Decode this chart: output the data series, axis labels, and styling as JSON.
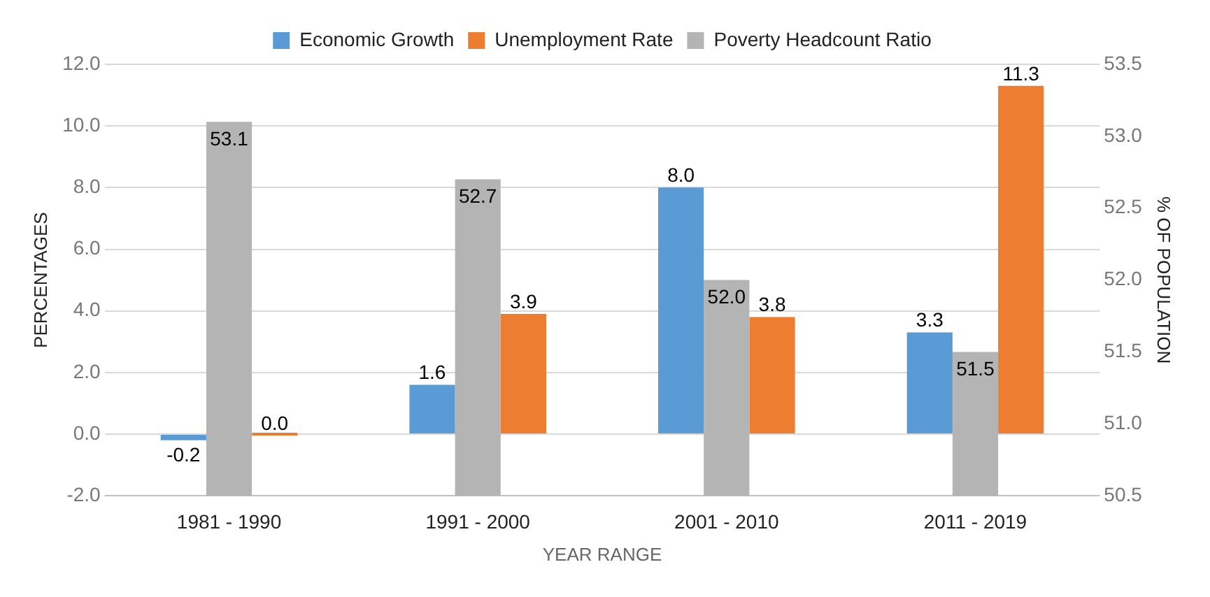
{
  "chart_data": {
    "type": "bar",
    "categories": [
      "1981 - 1990",
      "1991 - 2000",
      "2001 - 2010",
      "2011 - 2019"
    ],
    "xlabel": "YEAR RANGE",
    "ylabel": "PERCENTAGES",
    "y2label": "% OF POPULATION",
    "series": [
      {
        "name": "Economic Growth",
        "color": "#5b9bd5",
        "values": [
          -0.2,
          1.6,
          8.0,
          3.3
        ],
        "value_labels": [
          "-0.2",
          "1.6",
          "8.0",
          "3.3"
        ]
      },
      {
        "name": "Unemployment Rate",
        "color": "#ed7d31",
        "values": [
          0.0,
          3.9,
          3.8,
          11.3
        ],
        "value_labels": [
          "0.0",
          "3.9",
          "3.8",
          "11.3"
        ]
      },
      {
        "name": "Poverty Headcount Ratio",
        "color": "#b4b4b4",
        "axis": "y2",
        "values": [
          53.1,
          52.7,
          52.0,
          51.5
        ],
        "value_labels": [
          "53.1",
          "52.7",
          "52.0",
          "51.5"
        ]
      }
    ],
    "ylim": [
      -2,
      12
    ],
    "yticks": [
      {
        "value": -2,
        "label": "-2.0"
      },
      {
        "value": 0,
        "label": "0.0"
      },
      {
        "value": 2,
        "label": "2.0"
      },
      {
        "value": 4,
        "label": "4.0"
      },
      {
        "value": 6,
        "label": "6.0"
      },
      {
        "value": 8,
        "label": "8.0"
      },
      {
        "value": 10,
        "label": "10.0"
      },
      {
        "value": 12,
        "label": "12.0"
      }
    ],
    "y2lim": [
      50.5,
      53.5
    ],
    "y2ticks": [
      {
        "value": 50.5,
        "label": "50.5"
      },
      {
        "value": 51,
        "label": "51.0"
      },
      {
        "value": 51.5,
        "label": "51.5"
      },
      {
        "value": 52,
        "label": "52.0"
      },
      {
        "value": 52.5,
        "label": "52.5"
      },
      {
        "value": 53,
        "label": "53.0"
      },
      {
        "value": 53.5,
        "label": "53.5"
      }
    ],
    "grid": "y",
    "legend": "top"
  }
}
